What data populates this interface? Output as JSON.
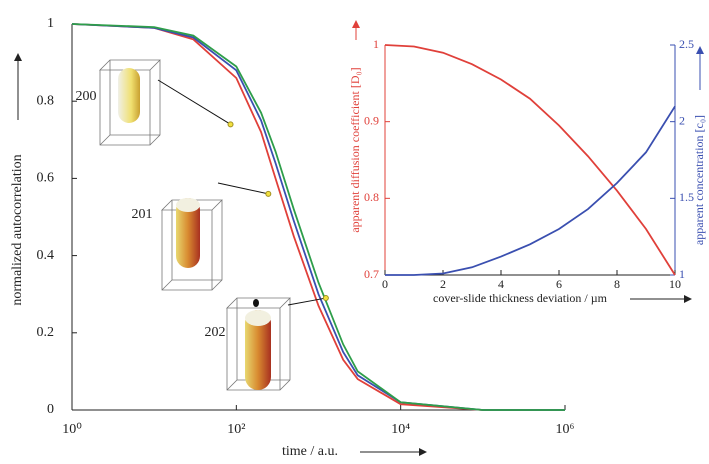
{
  "chart_data": [
    {
      "type": "line",
      "xlabel": "time / a.u.",
      "ylabel": "normalized autocorrelation",
      "log_x": true,
      "x": [
        1,
        10,
        30,
        100,
        200,
        300,
        500,
        1000,
        2000,
        3000,
        10000,
        100000,
        1000000
      ],
      "series": [
        {
          "color": "#e0403a",
          "values": [
            1,
            0.99,
            0.96,
            0.86,
            0.72,
            0.6,
            0.45,
            0.27,
            0.13,
            0.08,
            0.015,
            0,
            0
          ]
        },
        {
          "color": "#3a4fb0",
          "values": [
            1,
            0.99,
            0.965,
            0.88,
            0.75,
            0.64,
            0.49,
            0.3,
            0.15,
            0.09,
            0.02,
            0,
            0
          ]
        },
        {
          "color": "#2e9e4a",
          "values": [
            1,
            0.992,
            0.97,
            0.89,
            0.77,
            0.67,
            0.52,
            0.33,
            0.17,
            0.1,
            0.02,
            0,
            0
          ]
        }
      ],
      "annotations": [
        {
          "text": "200",
          "x": 85,
          "y": 0.74
        },
        {
          "text": "201",
          "x": 245,
          "y": 0.56
        },
        {
          "text": "202",
          "x": 1230,
          "y": 0.29
        }
      ],
      "xlim": [
        1,
        1000000
      ],
      "xticks": [
        {
          "value": 1,
          "label": "10⁰"
        },
        {
          "value": 100,
          "label": "10²"
        },
        {
          "value": 10000,
          "label": "10⁴"
        },
        {
          "value": 1000000,
          "label": "10⁶"
        }
      ],
      "ylim": [
        0,
        1
      ],
      "yticks": [
        0,
        0.2,
        0.4,
        0.6,
        0.8,
        1
      ]
    },
    {
      "type": "line",
      "xlabel": "cover-slide thickness deviation / µm",
      "ylabel": "apparent diffusion coefficient [D₀]",
      "y2label": "apparent concentration [c₀]",
      "x": [
        0,
        1,
        2,
        3,
        4,
        5,
        6,
        7,
        8,
        9,
        10
      ],
      "series": [
        {
          "color": "#e0403a",
          "values": [
            1,
            0.998,
            0.99,
            0.975,
            0.955,
            0.93,
            0.895,
            0.855,
            0.81,
            0.76,
            0.7
          ]
        },
        {
          "color": "#3a4fb0",
          "axis": "y2",
          "values": [
            1,
            1,
            1.01,
            1.05,
            1.12,
            1.2,
            1.3,
            1.43,
            1.6,
            1.8,
            2.1
          ]
        }
      ],
      "xlim": [
        0,
        10
      ],
      "xticks": [
        0,
        2,
        4,
        6,
        8,
        10
      ],
      "ylim": [
        0.7,
        1
      ],
      "yticks": [
        0.7,
        0.8,
        0.9,
        1
      ],
      "y2lim": [
        1,
        2.5
      ],
      "y2ticks": [
        1,
        1.5,
        2,
        2.5
      ]
    }
  ]
}
